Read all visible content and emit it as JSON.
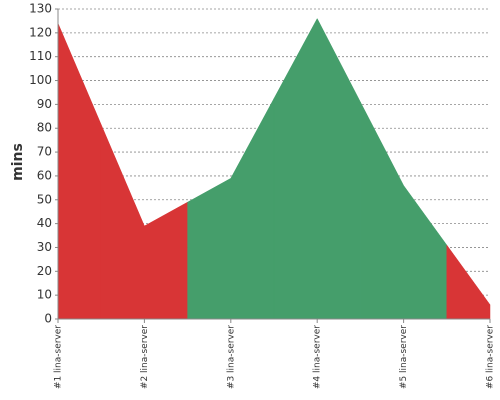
{
  "chart_data": {
    "type": "area",
    "y_label": "mins",
    "categories": [
      "#1 lina-server",
      "#2 lina-server",
      "#3 lina-server",
      "#4 lina-server",
      "#5 lina-server",
      "#6 lina-server"
    ],
    "values": [
      124,
      39,
      59,
      126,
      56,
      6
    ],
    "colors": [
      "#d83536",
      "#d83536",
      "#459e6b",
      "#459e6b",
      "#459e6b",
      "#d83536"
    ],
    "ylim": [
      0,
      130
    ],
    "yticks": [
      0,
      10,
      20,
      30,
      40,
      50,
      60,
      70,
      80,
      90,
      100,
      110,
      120,
      130
    ],
    "grid": true
  }
}
